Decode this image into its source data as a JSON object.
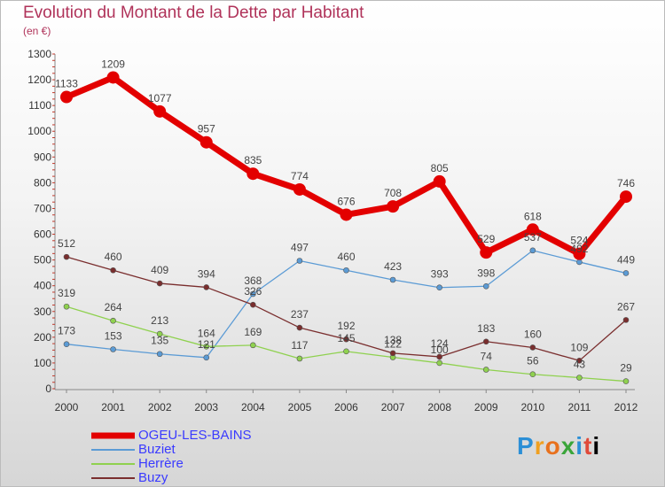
{
  "header": {
    "title": "Evolution du Montant de la Dette par Habitant",
    "unit": "(en €)"
  },
  "logo": {
    "letters": [
      "P",
      "r",
      "o",
      "x",
      "i",
      "t",
      "i"
    ]
  },
  "chart_data": {
    "type": "line",
    "x": [
      "2000",
      "2001",
      "2002",
      "2003",
      "2004",
      "2005",
      "2006",
      "2007",
      "2008",
      "2009",
      "2010",
      "2011",
      "2012"
    ],
    "ylim": [
      0,
      1300
    ],
    "yticks": [
      0,
      100,
      200,
      300,
      400,
      500,
      600,
      700,
      800,
      900,
      1000,
      1100,
      1200,
      1300
    ],
    "grid": false,
    "legend_position": "bottom-left",
    "series": [
      {
        "name": "OGEU-LES-BAINS",
        "color": "#e30000",
        "width": 7,
        "marker": 7,
        "label_color": "#444444",
        "values": [
          1133,
          1209,
          1077,
          957,
          835,
          774,
          676,
          708,
          805,
          529,
          618,
          524,
          746
        ]
      },
      {
        "name": "Buziet",
        "color": "#5b9bd5",
        "width": 1.3,
        "marker": 3,
        "label_color": "#444444",
        "values": [
          173,
          153,
          135,
          121,
          368,
          497,
          460,
          423,
          393,
          398,
          537,
          492,
          449
        ]
      },
      {
        "name": "Herrère",
        "color": "#8fd14f",
        "width": 1.3,
        "marker": 3,
        "label_color": "#444444",
        "values": [
          319,
          264,
          213,
          164,
          169,
          117,
          145,
          122,
          100,
          74,
          56,
          43,
          29
        ]
      },
      {
        "name": "Buzy",
        "color": "#7a2e2e",
        "width": 1.3,
        "marker": 3,
        "label_color": "#444444",
        "values": [
          512,
          460,
          409,
          394,
          326,
          237,
          192,
          138,
          124,
          183,
          160,
          109,
          267
        ]
      }
    ]
  }
}
